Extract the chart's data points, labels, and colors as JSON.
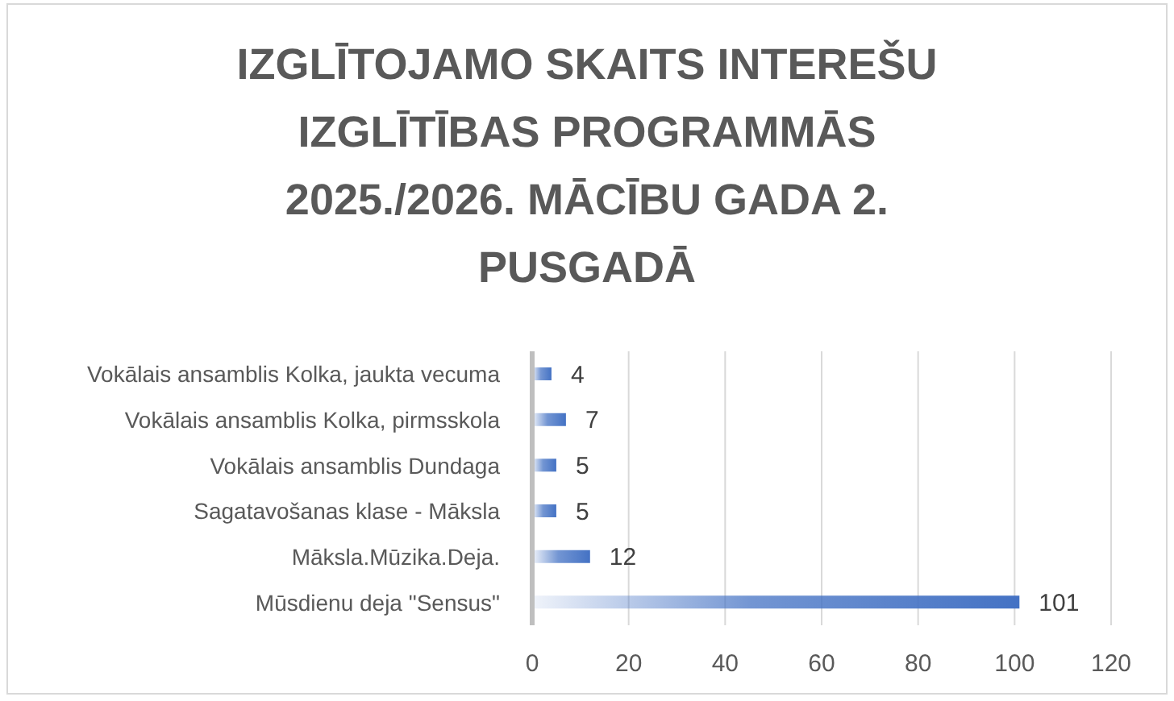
{
  "chart_data": {
    "type": "bar",
    "orientation": "horizontal",
    "title": "IZGLĪTOJAMO SKAITS INTEREŠU IZGLĪTĪBAS PROGRAMMĀS 2025./2026. MĀCĪBU GADA 2. PUSGADĀ",
    "categories": [
      "Vokālais ansamblis Kolka, jaukta vecuma",
      "Vokālais ansamblis Kolka, pirmsskola",
      "Vokālais ansamblis Dundaga",
      "Sagatavošanas klase - Māksla",
      "Māksla.Mūzika.Deja.",
      "Mūsdienu deja \"Sensus\""
    ],
    "values": [
      4,
      7,
      5,
      5,
      12,
      101
    ],
    "color": "#4472c4",
    "xlim": [
      0,
      120
    ],
    "xticks": [
      0,
      20,
      40,
      60,
      80,
      100,
      120
    ],
    "grid": "x",
    "data_labels": true
  }
}
